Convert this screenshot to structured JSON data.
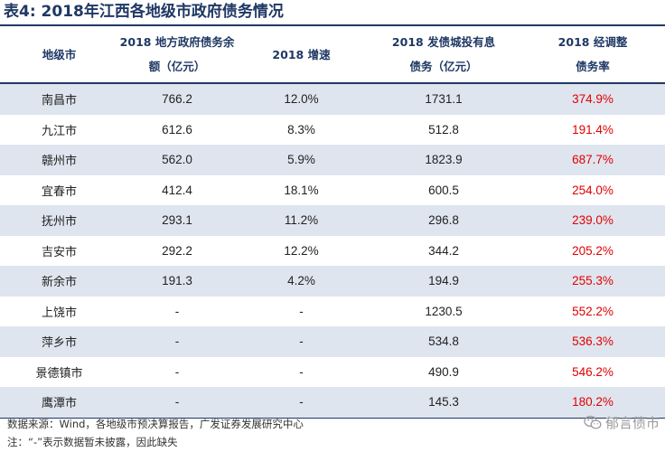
{
  "title": "表4:  2018年江西各地级市政府债务情况",
  "table": {
    "headers": {
      "city": "地级市",
      "debt_line1": "2018 地方政府债务余",
      "debt_line2": "额（亿元）",
      "growth": "2018 增速",
      "bond_line1": "2018 发债城投有息",
      "bond_line2": "债务（亿元）",
      "rate_line1": "2018 经调整",
      "rate_line2": "债务率"
    },
    "rows": [
      {
        "city": "南昌市",
        "debt": "766.2",
        "growth": "12.0%",
        "bond_debt": "1731.1",
        "rate": "374.9%"
      },
      {
        "city": "九江市",
        "debt": "612.6",
        "growth": "8.3%",
        "bond_debt": "512.8",
        "rate": "191.4%"
      },
      {
        "city": "赣州市",
        "debt": "562.0",
        "growth": "5.9%",
        "bond_debt": "1823.9",
        "rate": "687.7%"
      },
      {
        "city": "宜春市",
        "debt": "412.4",
        "growth": "18.1%",
        "bond_debt": "600.5",
        "rate": "254.0%"
      },
      {
        "city": "抚州市",
        "debt": "293.1",
        "growth": "11.2%",
        "bond_debt": "296.8",
        "rate": "239.0%"
      },
      {
        "city": "吉安市",
        "debt": "292.2",
        "growth": "12.2%",
        "bond_debt": "344.2",
        "rate": "205.2%"
      },
      {
        "city": "新余市",
        "debt": "191.3",
        "growth": "4.2%",
        "bond_debt": "194.9",
        "rate": "255.3%"
      },
      {
        "city": "上饶市",
        "debt": "-",
        "growth": "-",
        "bond_debt": "1230.5",
        "rate": "552.2%"
      },
      {
        "city": "萍乡市",
        "debt": "-",
        "growth": "-",
        "bond_debt": "534.8",
        "rate": "536.3%"
      },
      {
        "city": "景德镇市",
        "debt": "-",
        "growth": "-",
        "bond_debt": "490.9",
        "rate": "546.2%"
      },
      {
        "city": "鹰潭市",
        "debt": "-",
        "growth": "-",
        "bond_debt": "145.3",
        "rate": "180.2%"
      }
    ]
  },
  "source_note": "数据来源：Wind，各地级市预决算报告，广发证券发展研究中心",
  "footnote": "注：“-”表示数据暂未披露，因此缺失",
  "watermark": "郁言债市",
  "colors": {
    "header_text": "#1f3864",
    "band_fill": "#dfe5ef",
    "rate_text": "#e00000"
  }
}
